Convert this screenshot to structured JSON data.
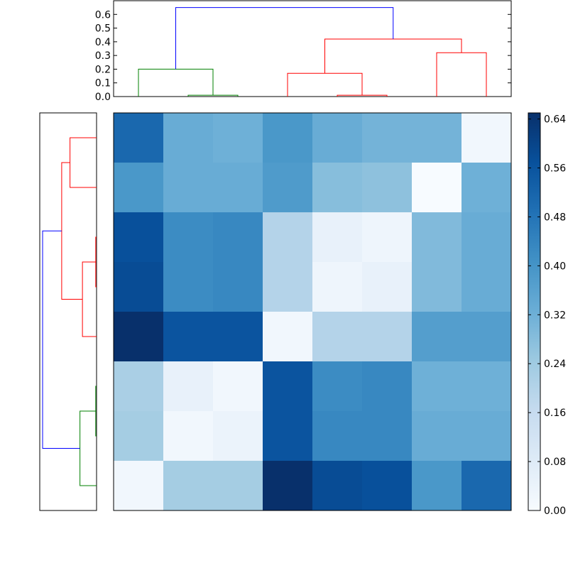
{
  "chart_data": {
    "type": "heatmap",
    "title": "",
    "xlabel": "",
    "ylabel": "",
    "colormap": "Blues",
    "colors": {
      "blue_link": "#0000ff",
      "red_link": "#ff0000",
      "green_link": "#008000",
      "axis": "#000000"
    },
    "value_range": [
      0.0,
      0.65
    ],
    "matrix": [
      [
        0.51,
        0.33,
        0.32,
        0.39,
        0.33,
        0.31,
        0.31,
        0.02
      ],
      [
        0.39,
        0.33,
        0.33,
        0.38,
        0.28,
        0.27,
        0.0,
        0.32
      ],
      [
        0.57,
        0.42,
        0.43,
        0.2,
        0.05,
        0.03,
        0.29,
        0.33
      ],
      [
        0.58,
        0.42,
        0.43,
        0.2,
        0.03,
        0.05,
        0.29,
        0.33
      ],
      [
        0.65,
        0.56,
        0.56,
        0.02,
        0.2,
        0.2,
        0.37,
        0.37
      ],
      [
        0.22,
        0.05,
        0.02,
        0.56,
        0.42,
        0.43,
        0.32,
        0.32
      ],
      [
        0.23,
        0.02,
        0.04,
        0.56,
        0.43,
        0.43,
        0.33,
        0.33
      ],
      [
        0.02,
        0.23,
        0.23,
        0.65,
        0.58,
        0.57,
        0.39,
        0.51
      ]
    ],
    "colorbar_ticks": [
      "0.00",
      "0.08",
      "0.16",
      "0.24",
      "0.32",
      "0.40",
      "0.48",
      "0.56",
      "0.64"
    ],
    "top_dendrogram": {
      "ylim": [
        0,
        0.7
      ],
      "y_ticks": [
        "0.0",
        "0.1",
        "0.2",
        "0.3",
        "0.4",
        "0.5",
        "0.6"
      ],
      "links": [
        {
          "left": 1,
          "right": 2,
          "left_base": 0.0,
          "right_base": 0.0,
          "height": 0.01,
          "color": "green"
        },
        {
          "left": 0,
          "right": 1.5,
          "left_base": 0.0,
          "right_base": 0.01,
          "height": 0.2,
          "color": "green"
        },
        {
          "left": 4,
          "right": 5,
          "left_base": 0.0,
          "right_base": 0.0,
          "height": 0.01,
          "color": "red"
        },
        {
          "left": 3,
          "right": 4.5,
          "left_base": 0.0,
          "right_base": 0.01,
          "height": 0.17,
          "color": "red"
        },
        {
          "left": 6,
          "right": 7,
          "left_base": 0.0,
          "right_base": 0.0,
          "height": 0.32,
          "color": "red"
        },
        {
          "left": 3.75,
          "right": 6.5,
          "left_base": 0.17,
          "right_base": 0.32,
          "height": 0.42,
          "color": "red"
        },
        {
          "left": 0.75,
          "right": 5.125,
          "left_base": 0.2,
          "right_base": 0.42,
          "height": 0.65,
          "color": "blue"
        }
      ]
    },
    "left_dendrogram": {
      "links": [
        {
          "top": 2,
          "bottom": 3,
          "top_base": 0.0,
          "bottom_base": 0.0,
          "height": 0.01,
          "color": "red"
        },
        {
          "top": 4,
          "bottom": 2.5,
          "top_base": 0.0,
          "bottom_base": 0.01,
          "height": 0.17,
          "color": "red"
        },
        {
          "top": 0,
          "bottom": 1,
          "top_base": 0.0,
          "bottom_base": 0.0,
          "height": 0.32,
          "color": "red"
        },
        {
          "top": 0.5,
          "bottom": 3.25,
          "top_base": 0.32,
          "bottom_base": 0.17,
          "height": 0.42,
          "color": "red"
        },
        {
          "top": 5,
          "bottom": 6,
          "top_base": 0.0,
          "bottom_base": 0.0,
          "height": 0.01,
          "color": "green"
        },
        {
          "top": 5.5,
          "bottom": 7,
          "top_base": 0.01,
          "bottom_base": 0.0,
          "height": 0.2,
          "color": "green"
        },
        {
          "top": 1.875,
          "bottom": 6.25,
          "top_base": 0.42,
          "bottom_base": 0.2,
          "height": 0.65,
          "color": "blue"
        }
      ]
    }
  }
}
